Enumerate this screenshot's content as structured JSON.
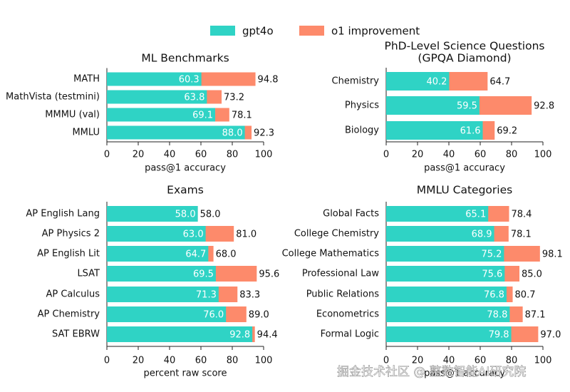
{
  "legend_position": "top",
  "watermark": "掘金技术社区 @ 整数智能AI研究院",
  "chart_data": [
    {
      "type": "bar",
      "orientation": "horizontal",
      "title": "ML Benchmarks",
      "categories": [
        "MATH",
        "MathVista (testmini)",
        "MMMU (val)",
        "MMLU"
      ],
      "series": [
        {
          "name": "gpt4o",
          "color": "#2fd3c5",
          "values": [
            60.3,
            63.8,
            69.1,
            88.0
          ],
          "value_labels": [
            "60.3",
            "63.8",
            "69.1",
            "88.0"
          ]
        },
        {
          "name": "o1 improvement",
          "color": "#fd8a6b",
          "values": [
            94.8,
            73.2,
            78.1,
            92.3
          ],
          "value_labels": [
            "94.8",
            "73.2",
            "78.1",
            "92.3"
          ]
        }
      ],
      "xlabel": "pass@1 accuracy",
      "xlim": [
        0,
        100
      ],
      "xticks": [
        0,
        20,
        40,
        60,
        80,
        100
      ]
    },
    {
      "type": "bar",
      "orientation": "horizontal",
      "title": "PhD-Level Science Questions",
      "subtitle": "(GPQA Diamond)",
      "categories": [
        "Chemistry",
        "Physics",
        "Biology"
      ],
      "series": [
        {
          "color": "#2fd3c5",
          "values": [
            40.2,
            59.5,
            61.6
          ],
          "value_labels": [
            "40.2",
            "59.5",
            "61.6"
          ]
        },
        {
          "color": "#fd8a6b",
          "values": [
            64.7,
            92.8,
            69.2
          ],
          "value_labels": [
            "64.7",
            "92.8",
            "69.2"
          ]
        }
      ],
      "xlabel": "pass@1 accuracy",
      "xlim": [
        0,
        100
      ],
      "xticks": [
        0,
        20,
        40,
        60,
        80,
        100
      ]
    },
    {
      "type": "bar",
      "orientation": "horizontal",
      "title": "Exams",
      "categories": [
        "AP English Lang",
        "AP Physics 2",
        "AP English Lit",
        "LSAT",
        "AP Calculus",
        "AP Chemistry",
        "SAT EBRW"
      ],
      "series": [
        {
          "color": "#2fd3c5",
          "values": [
            58.0,
            63.0,
            64.7,
            69.5,
            71.3,
            76.0,
            92.8
          ],
          "value_labels": [
            "58.0",
            "63.0",
            "64.7",
            "69.5",
            "71.3",
            "76.0",
            "92.8"
          ]
        },
        {
          "color": "#fd8a6b",
          "values": [
            58.0,
            81.0,
            68.0,
            95.6,
            83.3,
            89.0,
            94.4
          ],
          "value_labels": [
            "58.0",
            "81.0",
            "68.0",
            "95.6",
            "83.3",
            "89.0",
            "94.4"
          ]
        }
      ],
      "xlabel": "percent raw score",
      "xlim": [
        0,
        100
      ],
      "xticks": [
        0,
        20,
        40,
        60,
        80,
        100
      ]
    },
    {
      "type": "bar",
      "orientation": "horizontal",
      "title": "MMLU Categories",
      "categories": [
        "Global Facts",
        "College Chemistry",
        "College Mathematics",
        "Professional Law",
        "Public Relations",
        "Econometrics",
        "Formal Logic"
      ],
      "series": [
        {
          "color": "#2fd3c5",
          "values": [
            65.1,
            68.9,
            75.2,
            75.6,
            76.8,
            78.8,
            79.8
          ],
          "value_labels": [
            "65.1",
            "68.9",
            "75.2",
            "75.6",
            "76.8",
            "78.8",
            "79.8"
          ]
        },
        {
          "color": "#fd8a6b",
          "values": [
            78.4,
            78.1,
            98.1,
            85.0,
            80.7,
            87.1,
            97.0
          ],
          "value_labels": [
            "78.4",
            "78.1",
            "98.1",
            "85.0",
            "80.7",
            "87.1",
            "97.0"
          ]
        }
      ],
      "xlabel": "pass@1 accuracy",
      "xlim": [
        0,
        100
      ],
      "xticks": [
        0,
        20,
        40,
        60,
        80,
        100
      ]
    }
  ]
}
